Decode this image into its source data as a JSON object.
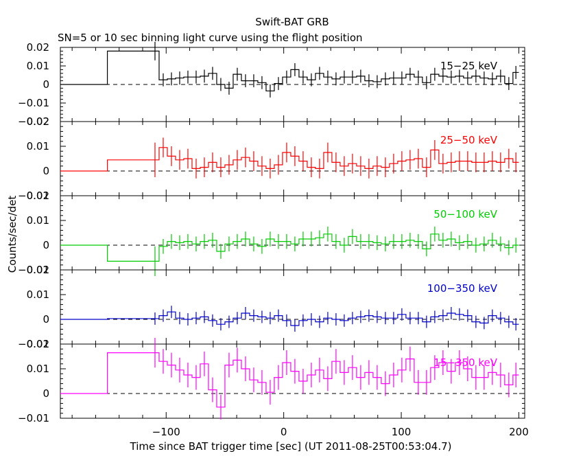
{
  "chart_data": {
    "type": "line",
    "title": "Swift-BAT GRB",
    "subtitle": "SN=5 or 10 sec binning light curve using the flight position",
    "xlabel": "Time since BAT trigger time [sec] (UT 2011-08-25T00:53:04.7)",
    "ylabel": "Counts/sec/det",
    "xlim": [
      -190,
      205
    ],
    "x_ticks": [
      -100,
      0,
      100,
      200
    ],
    "x_tick_labels": [
      "−100",
      "0",
      "100",
      "200"
    ],
    "grid": false,
    "panels": [
      {
        "name": "15−25 keV",
        "color": "#000000",
        "ylim": [
          -0.02,
          0.02
        ],
        "y_ticks": [
          -0.02,
          -0.01,
          0,
          0.01,
          0.02
        ],
        "y_tick_labels": [
          "−0.02",
          "−0.01",
          "0",
          "0.01",
          "0.02"
        ],
        "edges": [
          -190,
          -150,
          -113,
          -106,
          -99,
          -92,
          -85,
          -78,
          -71,
          -64,
          -57,
          -50,
          -43,
          -36,
          -29,
          -22,
          -15,
          -8,
          -1,
          6,
          13,
          20,
          27,
          34,
          41,
          48,
          55,
          62,
          69,
          76,
          83,
          90,
          97,
          104,
          111,
          118,
          125,
          132,
          139,
          146,
          153,
          160,
          167,
          174,
          181,
          188,
          195,
          200
        ],
        "values": [
          0,
          0.018,
          0.018,
          0.0025,
          0.003,
          0.0035,
          0.004,
          0.004,
          0.0045,
          0.006,
          0,
          -0.002,
          0.0055,
          0.002,
          0.002,
          0.001,
          -0.0035,
          0.0005,
          0.004,
          0.008,
          0.004,
          0.0025,
          0.006,
          0.004,
          0.003,
          0.004,
          0.004,
          0.0045,
          0.002,
          0.0015,
          0.003,
          0.0035,
          0.0035,
          0.0055,
          0.004,
          0.001,
          0.0055,
          0.0045,
          0.004,
          0.0045,
          0.0035,
          0.0045,
          0.0035,
          0.003,
          0.0045,
          0.0005,
          0.0065
        ],
        "errors": [
          0,
          0,
          0.005,
          0.0035,
          0.0035,
          0.0035,
          0.0035,
          0.0035,
          0.0035,
          0.0035,
          0.0035,
          0.0035,
          0.0035,
          0.0035,
          0.0035,
          0.0035,
          0.0035,
          0.0035,
          0.0035,
          0.0035,
          0.0035,
          0.0035,
          0.0035,
          0.0035,
          0.0035,
          0.0035,
          0.0035,
          0.0035,
          0.0035,
          0.0035,
          0.0035,
          0.0035,
          0.0035,
          0.0035,
          0.0035,
          0.0035,
          0.0035,
          0.0035,
          0.0035,
          0.0035,
          0.0035,
          0.0035,
          0.0035,
          0.0035,
          0.0035,
          0.0035,
          0.0035
        ]
      },
      {
        "name": "25−50 keV",
        "color": "#ff0000",
        "ylim": [
          -0.01,
          0.02
        ],
        "y_ticks": [
          -0.01,
          0,
          0.01,
          0.02
        ],
        "y_tick_labels": [
          "−0.01",
          "0",
          "0.01",
          "0.02"
        ],
        "edges": [
          -190,
          -150,
          -113,
          -106,
          -99,
          -92,
          -85,
          -78,
          -71,
          -64,
          -57,
          -50,
          -43,
          -36,
          -29,
          -22,
          -15,
          -8,
          -1,
          6,
          13,
          20,
          27,
          34,
          41,
          48,
          55,
          62,
          69,
          76,
          83,
          90,
          97,
          104,
          111,
          118,
          125,
          132,
          139,
          146,
          153,
          160,
          167,
          174,
          181,
          188,
          195,
          200
        ],
        "values": [
          0,
          0.0045,
          0.0045,
          0.0095,
          0.006,
          0.0045,
          0.005,
          0.001,
          0.0015,
          0.0035,
          0.0015,
          0.0025,
          0.0045,
          0.0055,
          0.004,
          0.002,
          0.001,
          0.0025,
          0.0075,
          0.006,
          0.004,
          0.0015,
          0.001,
          0.0075,
          0.0035,
          0.002,
          0.003,
          0.002,
          0.001,
          0.002,
          0.0015,
          0.003,
          0.004,
          0.0045,
          0.005,
          0.0015,
          0.0085,
          0.003,
          0.0035,
          0.004,
          0.004,
          0.0035,
          0.0035,
          0.004,
          0.0035,
          0.005,
          0.0035
        ],
        "errors": [
          0,
          0,
          0.007,
          0.004,
          0.004,
          0.004,
          0.004,
          0.004,
          0.004,
          0.004,
          0.004,
          0.004,
          0.004,
          0.004,
          0.004,
          0.004,
          0.004,
          0.004,
          0.004,
          0.004,
          0.004,
          0.004,
          0.004,
          0.004,
          0.004,
          0.004,
          0.004,
          0.004,
          0.004,
          0.004,
          0.004,
          0.004,
          0.004,
          0.004,
          0.004,
          0.004,
          0.004,
          0.004,
          0.004,
          0.004,
          0.004,
          0.004,
          0.004,
          0.004,
          0.004,
          0.004,
          0.004
        ]
      },
      {
        "name": "50−100 keV",
        "color": "#00cc00",
        "ylim": [
          -0.01,
          0.02
        ],
        "y_ticks": [
          -0.01,
          0,
          0.01,
          0.02
        ],
        "y_tick_labels": [
          "−0.01",
          "0",
          "0.01",
          "0.02"
        ],
        "edges": [
          -190,
          -150,
          -113,
          -106,
          -99,
          -92,
          -85,
          -78,
          -71,
          -64,
          -57,
          -50,
          -43,
          -36,
          -29,
          -22,
          -15,
          -8,
          -1,
          6,
          13,
          20,
          27,
          34,
          41,
          48,
          55,
          62,
          69,
          76,
          83,
          90,
          97,
          104,
          111,
          118,
          125,
          132,
          139,
          146,
          153,
          160,
          167,
          174,
          181,
          188,
          195,
          200
        ],
        "values": [
          0,
          -0.0065,
          -0.0065,
          -0.0005,
          0.0015,
          0.001,
          0.0015,
          0.0005,
          0.0015,
          0.002,
          -0.0025,
          0.0005,
          0.0015,
          0.0025,
          0.0005,
          -0.0005,
          0.0025,
          0.0015,
          0.0015,
          0.0005,
          0.0025,
          0.0025,
          0.003,
          0.0045,
          0.0015,
          0,
          0.0035,
          0.0015,
          0.0015,
          0.001,
          0.0005,
          0.0015,
          0.0015,
          0.002,
          0.0015,
          -0.0015,
          0.0045,
          0.002,
          0.0025,
          0.001,
          0.0015,
          0,
          0.0005,
          0.002,
          0.0005,
          -0.001,
          0
        ],
        "errors": [
          0,
          0,
          0.006,
          0.003,
          0.003,
          0.003,
          0.003,
          0.003,
          0.003,
          0.003,
          0.003,
          0.003,
          0.003,
          0.003,
          0.003,
          0.003,
          0.003,
          0.003,
          0.003,
          0.003,
          0.003,
          0.003,
          0.003,
          0.003,
          0.003,
          0.003,
          0.003,
          0.003,
          0.003,
          0.003,
          0.003,
          0.003,
          0.003,
          0.003,
          0.003,
          0.003,
          0.003,
          0.003,
          0.003,
          0.003,
          0.003,
          0.003,
          0.003,
          0.003,
          0.003,
          0.003,
          0.003
        ]
      },
      {
        "name": "100−350 keV",
        "color": "#0000cc",
        "ylim": [
          -0.01,
          0.02
        ],
        "y_ticks": [
          -0.01,
          0,
          0.01,
          0.02
        ],
        "y_tick_labels": [
          "−0.01",
          "0",
          "0.01",
          "0.02"
        ],
        "edges": [
          -190,
          -150,
          -113,
          -106,
          -99,
          -92,
          -85,
          -78,
          -71,
          -64,
          -57,
          -50,
          -43,
          -36,
          -29,
          -22,
          -15,
          -8,
          -1,
          6,
          13,
          20,
          27,
          34,
          41,
          48,
          55,
          62,
          69,
          76,
          83,
          90,
          97,
          104,
          111,
          118,
          125,
          132,
          139,
          146,
          153,
          160,
          167,
          174,
          181,
          188,
          195,
          200
        ],
        "values": [
          0,
          0.0003,
          0.0003,
          0.0015,
          0.003,
          0.0005,
          0,
          0.0005,
          0.001,
          -0.0005,
          -0.002,
          -0.001,
          0.0005,
          0.0025,
          0.0015,
          0.001,
          0.0005,
          0.0015,
          -0.0005,
          -0.0025,
          -0.0005,
          0,
          -0.001,
          0.0005,
          0,
          -0.0005,
          0.0005,
          0.001,
          0.0015,
          0.001,
          0.0005,
          0.0005,
          0.002,
          0.0005,
          0.0005,
          -0.001,
          0.001,
          0.0015,
          0.0025,
          0.002,
          0.0015,
          -0.001,
          -0.0015,
          0.0015,
          0.0005,
          -0.001,
          -0.002
        ],
        "errors": [
          0,
          0,
          0.0025,
          0.0025,
          0.0025,
          0.0025,
          0.0025,
          0.0025,
          0.0025,
          0.0025,
          0.0025,
          0.0025,
          0.0025,
          0.0025,
          0.0025,
          0.0025,
          0.0025,
          0.0025,
          0.0025,
          0.0025,
          0.0025,
          0.0025,
          0.0025,
          0.0025,
          0.0025,
          0.0025,
          0.0025,
          0.0025,
          0.0025,
          0.0025,
          0.0025,
          0.0025,
          0.0025,
          0.0025,
          0.0025,
          0.0025,
          0.0025,
          0.0025,
          0.0025,
          0.0025,
          0.0025,
          0.0025,
          0.0025,
          0.0025,
          0.0025,
          0.0025,
          0.0025
        ]
      },
      {
        "name": "15−350 keV",
        "color": "#ff00ff",
        "ylim": [
          -0.01,
          0.02
        ],
        "y_ticks": [
          -0.01,
          0,
          0.01,
          0.02
        ],
        "y_tick_labels": [
          "−0.01",
          "0",
          "0.01",
          "0.02"
        ],
        "edges": [
          -190,
          -150,
          -113,
          -106,
          -99,
          -92,
          -85,
          -78,
          -71,
          -64,
          -57,
          -50,
          -43,
          -36,
          -29,
          -22,
          -15,
          -8,
          -1,
          6,
          13,
          20,
          27,
          34,
          41,
          48,
          55,
          62,
          69,
          76,
          83,
          90,
          97,
          104,
          111,
          118,
          125,
          132,
          139,
          146,
          153,
          160,
          167,
          174,
          181,
          188,
          195,
          200
        ],
        "values": [
          0,
          0.0165,
          0.0165,
          0.013,
          0.0115,
          0.0095,
          0.0075,
          0.0065,
          0.012,
          0.0015,
          -0.0055,
          0.0115,
          0.0135,
          0.01,
          0.0055,
          0.0045,
          0.0005,
          0.0065,
          0.0125,
          0.009,
          0.005,
          0.0075,
          0.0095,
          0.006,
          0.013,
          0.0085,
          0.0105,
          0.0065,
          0.0085,
          0.0065,
          0.004,
          0.0075,
          0.0095,
          0.014,
          0.0045,
          0.0045,
          0.0105,
          0.0125,
          0.009,
          0.0125,
          0.01,
          0.0065,
          0.0065,
          0.0085,
          0.0075,
          0.0035,
          0.0075
        ],
        "errors": [
          0,
          0,
          0.006,
          0.005,
          0.005,
          0.005,
          0.005,
          0.005,
          0.005,
          0.005,
          0.005,
          0.005,
          0.005,
          0.005,
          0.005,
          0.005,
          0.005,
          0.005,
          0.005,
          0.005,
          0.005,
          0.005,
          0.005,
          0.005,
          0.005,
          0.005,
          0.005,
          0.005,
          0.005,
          0.005,
          0.005,
          0.005,
          0.005,
          0.005,
          0.005,
          0.005,
          0.005,
          0.005,
          0.005,
          0.005,
          0.005,
          0.005,
          0.005,
          0.005,
          0.005,
          0.005,
          0.005
        ]
      }
    ]
  }
}
